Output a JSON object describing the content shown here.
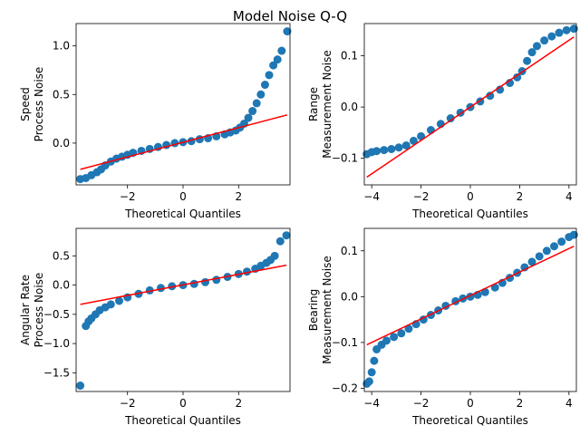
{
  "figure": {
    "title": "Model Noise Q-Q"
  },
  "chart_data": [
    {
      "type": "scatter",
      "title": "",
      "xlabel": "Theoretical Quantiles",
      "ylabel": [
        "Speed",
        "Process Noise"
      ],
      "xlim": [
        -3.85,
        3.85
      ],
      "ylim": [
        -0.43,
        1.23
      ],
      "xticks": [
        -2,
        0,
        2
      ],
      "xtick_labels": [
        "−2",
        "0",
        "2"
      ],
      "yticks": [
        0.0,
        0.5,
        1.0
      ],
      "ytick_labels": [
        "0.0",
        "0.5",
        "1.0"
      ],
      "grid": false,
      "legend": "none",
      "series": [
        {
          "color": "#1f77b4",
          "marker": "circle",
          "x": [
            -3.7,
            -3.5,
            -3.3,
            -3.1,
            -2.95,
            -2.8,
            -2.6,
            -2.4,
            -2.2,
            -2.0,
            -1.8,
            -1.5,
            -1.2,
            -0.9,
            -0.6,
            -0.3,
            0.0,
            0.3,
            0.6,
            0.9,
            1.2,
            1.5,
            1.7,
            1.9,
            2.05,
            2.2,
            2.35,
            2.5,
            2.65,
            2.8,
            2.95,
            3.1,
            3.25,
            3.4,
            3.55,
            3.75
          ],
          "y": [
            -0.37,
            -0.36,
            -0.33,
            -0.3,
            -0.27,
            -0.23,
            -0.19,
            -0.16,
            -0.14,
            -0.12,
            -0.1,
            -0.08,
            -0.06,
            -0.04,
            -0.02,
            0.0,
            0.01,
            0.02,
            0.04,
            0.05,
            0.07,
            0.09,
            0.11,
            0.13,
            0.16,
            0.2,
            0.26,
            0.33,
            0.41,
            0.5,
            0.6,
            0.7,
            0.8,
            0.86,
            0.95,
            1.15
          ]
        }
      ],
      "reference_line": {
        "color": "#ff0000",
        "x": [
          -3.7,
          3.75
        ],
        "y": [
          -0.27,
          0.29
        ]
      }
    },
    {
      "type": "scatter",
      "title": "",
      "xlabel": "Theoretical Quantiles",
      "ylabel": [
        "Range",
        "Measurement Noise"
      ],
      "xlim": [
        -4.3,
        4.3
      ],
      "ylim": [
        -0.152,
        0.163
      ],
      "xticks": [
        -4,
        -2,
        0,
        2,
        4
      ],
      "xtick_labels": [
        "−4",
        "−2",
        "0",
        "2",
        "4"
      ],
      "yticks": [
        -0.1,
        0.0,
        0.1
      ],
      "ytick_labels": [
        "−0.1",
        "0.0",
        "0.1"
      ],
      "grid": false,
      "legend": "none",
      "series": [
        {
          "color": "#1f77b4",
          "marker": "circle",
          "x": [
            -4.2,
            -4.0,
            -3.8,
            -3.5,
            -3.2,
            -2.9,
            -2.6,
            -2.3,
            -2.0,
            -1.6,
            -1.2,
            -0.8,
            -0.4,
            0.0,
            0.4,
            0.8,
            1.2,
            1.6,
            1.9,
            2.1,
            2.3,
            2.5,
            2.7,
            3.0,
            3.3,
            3.6,
            3.9,
            4.2
          ],
          "y": [
            -0.092,
            -0.088,
            -0.086,
            -0.084,
            -0.082,
            -0.079,
            -0.075,
            -0.066,
            -0.057,
            -0.045,
            -0.033,
            -0.022,
            -0.011,
            0.0,
            0.011,
            0.022,
            0.034,
            0.047,
            0.058,
            0.07,
            0.09,
            0.107,
            0.119,
            0.13,
            0.138,
            0.145,
            0.15,
            0.153
          ]
        }
      ],
      "reference_line": {
        "color": "#ff0000",
        "x": [
          -4.2,
          4.2
        ],
        "y": [
          -0.137,
          0.137
        ]
      }
    },
    {
      "type": "scatter",
      "title": "",
      "xlabel": "Theoretical Quantiles",
      "ylabel": [
        "Angular Rate",
        "Process Noise"
      ],
      "xlim": [
        -3.85,
        3.85
      ],
      "ylim": [
        -1.82,
        0.97
      ],
      "xticks": [
        -2,
        0,
        2
      ],
      "xtick_labels": [
        "−2",
        "0",
        "2"
      ],
      "yticks": [
        -1.5,
        -1.0,
        -0.5,
        0.0,
        0.5
      ],
      "ytick_labels": [
        "−1.5",
        "−1.0",
        "−0.5",
        "0.0",
        "0.5"
      ],
      "grid": false,
      "legend": "none",
      "series": [
        {
          "color": "#1f77b4",
          "marker": "circle",
          "x": [
            -3.7,
            -3.5,
            -3.4,
            -3.3,
            -3.15,
            -3.0,
            -2.8,
            -2.6,
            -2.3,
            -2.0,
            -1.6,
            -1.2,
            -0.8,
            -0.4,
            0.0,
            0.4,
            0.8,
            1.2,
            1.6,
            2.0,
            2.3,
            2.6,
            2.8,
            3.0,
            3.15,
            3.3,
            3.5,
            3.72
          ],
          "y": [
            -1.72,
            -0.7,
            -0.62,
            -0.57,
            -0.5,
            -0.43,
            -0.38,
            -0.33,
            -0.27,
            -0.21,
            -0.15,
            -0.09,
            -0.05,
            -0.02,
            0.0,
            0.02,
            0.05,
            0.09,
            0.14,
            0.19,
            0.23,
            0.28,
            0.33,
            0.38,
            0.43,
            0.5,
            0.75,
            0.85
          ]
        }
      ],
      "reference_line": {
        "color": "#ff0000",
        "x": [
          -3.7,
          3.72
        ],
        "y": [
          -0.33,
          0.34
        ]
      }
    },
    {
      "type": "scatter",
      "title": "",
      "xlabel": "Theoretical Quantiles",
      "ylabel": [
        "Bearing",
        "Measurement Noise"
      ],
      "xlim": [
        -4.3,
        4.3
      ],
      "ylim": [
        -0.207,
        0.149
      ],
      "xticks": [
        -4,
        -2,
        0,
        2,
        4
      ],
      "xtick_labels": [
        "−4",
        "−2",
        "0",
        "2",
        "4"
      ],
      "yticks": [
        -0.2,
        -0.1,
        0.0,
        0.1
      ],
      "ytick_labels": [
        "−0.2",
        "−0.1",
        "0.0",
        "0.1"
      ],
      "grid": false,
      "legend": "none",
      "series": [
        {
          "color": "#1f77b4",
          "marker": "circle",
          "x": [
            -4.2,
            -4.1,
            -4.0,
            -3.9,
            -3.8,
            -3.6,
            -3.4,
            -3.1,
            -2.8,
            -2.5,
            -2.2,
            -1.9,
            -1.6,
            -1.3,
            -1.0,
            -0.6,
            -0.3,
            0.0,
            0.3,
            0.6,
            1.0,
            1.3,
            1.6,
            1.9,
            2.2,
            2.5,
            2.8,
            3.1,
            3.4,
            3.7,
            4.0,
            4.2
          ],
          "y": [
            -0.19,
            -0.185,
            -0.165,
            -0.14,
            -0.115,
            -0.105,
            -0.096,
            -0.088,
            -0.08,
            -0.07,
            -0.06,
            -0.05,
            -0.04,
            -0.03,
            -0.02,
            -0.01,
            -0.004,
            0.0,
            0.004,
            0.01,
            0.02,
            0.03,
            0.041,
            0.052,
            0.064,
            0.076,
            0.088,
            0.1,
            0.11,
            0.12,
            0.13,
            0.135
          ]
        }
      ],
      "reference_line": {
        "color": "#ff0000",
        "x": [
          -4.2,
          4.2
        ],
        "y": [
          -0.105,
          0.11
        ]
      }
    }
  ]
}
